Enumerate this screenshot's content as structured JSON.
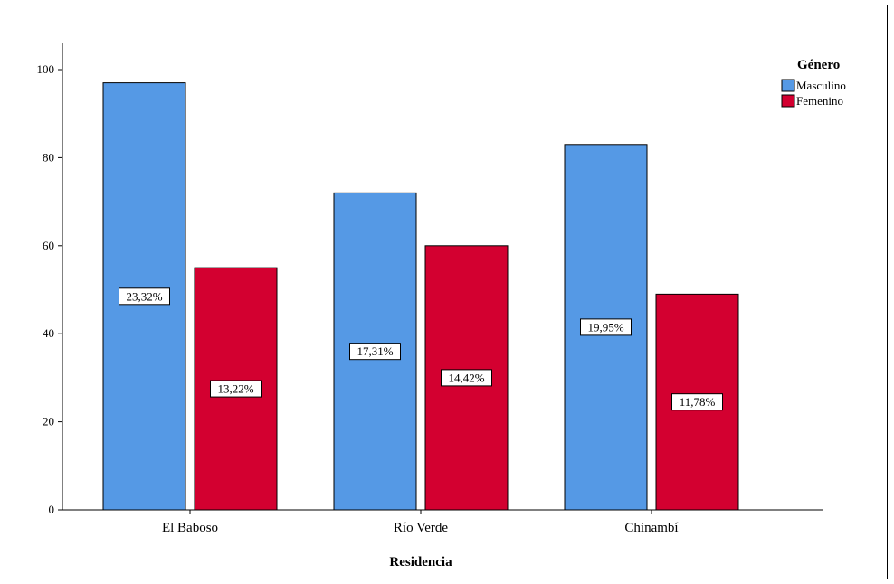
{
  "chart_data": {
    "type": "bar",
    "xlabel": "Residencia",
    "ylabel": "",
    "ylim": [
      0,
      100
    ],
    "yticks": [
      0,
      20,
      40,
      60,
      80,
      100
    ],
    "categories": [
      "El Baboso",
      "Río Verde",
      "Chinambí"
    ],
    "series": [
      {
        "name": "Masculino",
        "color": "#5599e5",
        "values": [
          97,
          72,
          83
        ],
        "labels": [
          "23,32%",
          "17,31%",
          "19,95%"
        ]
      },
      {
        "name": "Femenino",
        "color": "#d30030",
        "values": [
          55,
          60,
          49
        ],
        "labels": [
          "13,22%",
          "14,42%",
          "11,78%"
        ]
      }
    ],
    "legend": {
      "title": "Género",
      "position": "top-right"
    },
    "grid": false
  }
}
